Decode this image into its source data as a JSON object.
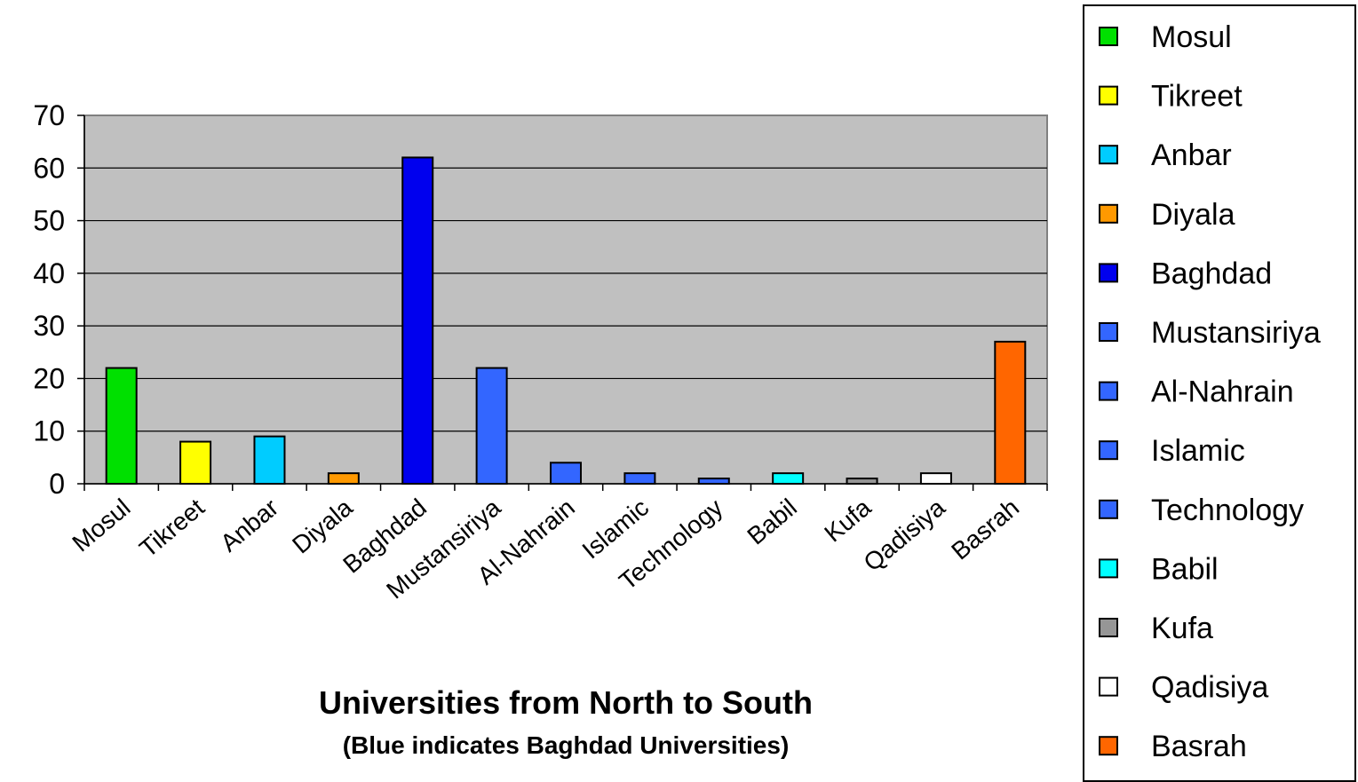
{
  "chart_data": {
    "type": "bar",
    "title": "",
    "xlabel": "Universities from North to South",
    "xlabel_note": "(Blue indicates Baghdad Universities)",
    "ylabel": "",
    "ylim": [
      0,
      70
    ],
    "yticks": [
      0,
      10,
      20,
      30,
      40,
      50,
      60,
      70
    ],
    "grid": true,
    "legend_position": "right",
    "plot_background": "#c0c0c0",
    "categories": [
      "Mosul",
      "Tikreet",
      "Anbar",
      "Diyala",
      "Baghdad",
      "Mustansiriya",
      "Al-Nahrain",
      "Islamic",
      "Technology",
      "Babil",
      "Kufa",
      "Qadisiya",
      "Basrah"
    ],
    "values": [
      22,
      8,
      9,
      2,
      62,
      22,
      4,
      2,
      1,
      2,
      1,
      2,
      27
    ],
    "colors": [
      "#00e000",
      "#ffff00",
      "#00ccff",
      "#ff9900",
      "#0000ee",
      "#3366ff",
      "#3366ff",
      "#3366ff",
      "#3366ff",
      "#00ffff",
      "#969696",
      "#ffffff",
      "#ff6600"
    ]
  }
}
